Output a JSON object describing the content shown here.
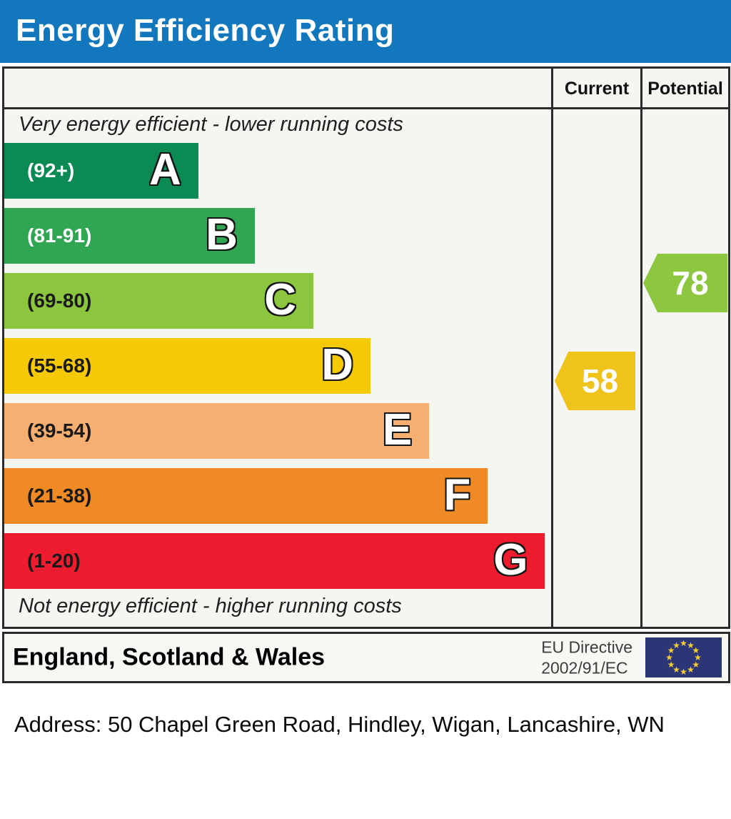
{
  "banner": {
    "title": "Energy Efficiency Rating",
    "bg_color": "#1277bd"
  },
  "table": {
    "current_label": "Current",
    "potential_label": "Potential",
    "top_note": "Very energy efficient - lower running costs",
    "bottom_note": "Not energy efficient - higher running costs"
  },
  "chart_data": {
    "type": "bar",
    "title": "Energy Efficiency Rating",
    "bands": [
      {
        "letter": "A",
        "range": "(92+)",
        "min": 92,
        "max": 100,
        "color": "#0c8a53",
        "range_color": "#ffffff",
        "width": "26.8%"
      },
      {
        "letter": "B",
        "range": "(81-91)",
        "min": 81,
        "max": 91,
        "color": "#30a552",
        "range_color": "#ffffff",
        "width": "34.6%"
      },
      {
        "letter": "C",
        "range": "(69-80)",
        "min": 69,
        "max": 80,
        "color": "#8cc63f",
        "range_color": "#1a1a1a",
        "width": "42.7%"
      },
      {
        "letter": "D",
        "range": "(55-68)",
        "min": 55,
        "max": 68,
        "color": "#f5c905",
        "range_color": "#1a1a1a",
        "width": "50.6%"
      },
      {
        "letter": "E",
        "range": "(39-54)",
        "min": 39,
        "max": 54,
        "color": "#f7ae71",
        "range_color": "#1a1a1a",
        "width": "58.7%"
      },
      {
        "letter": "F",
        "range": "(21-38)",
        "min": 21,
        "max": 38,
        "color": "#f08a24",
        "range_color": "#1a1a1a",
        "width": "66.8%"
      },
      {
        "letter": "G",
        "range": "(1-20)",
        "min": 1,
        "max": 20,
        "color": "#ed1c2e",
        "range_color": "#1a1a1a",
        "width": "74.7%"
      }
    ],
    "current": {
      "value": "58",
      "band": "D",
      "color": "#efc31a"
    },
    "potential": {
      "value": "78",
      "band": "C",
      "color": "#8dc63f"
    }
  },
  "footer": {
    "region": "England, Scotland & Wales",
    "directive_line1": "EU Directive",
    "directive_line2": "2002/91/EC",
    "flag": {
      "bg_color": "#2c3575",
      "star_color": "#f5cf31",
      "star_count": 12
    }
  },
  "address": {
    "label": "Address: 50 Chapel Green Road, Hindley, Wigan, Lancashire, WN"
  }
}
